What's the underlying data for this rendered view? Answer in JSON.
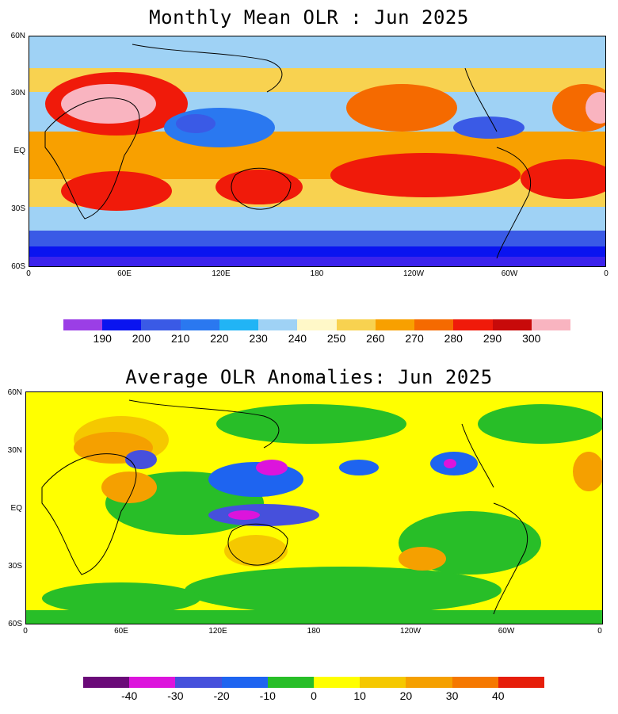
{
  "top_panel": {
    "title": "Monthly Mean OLR : Jun 2025",
    "lat_labels": [
      "60N",
      "30N",
      "EQ",
      "30S",
      "60S"
    ],
    "lon_labels": [
      "0",
      "60E",
      "120E",
      "180",
      "120W",
      "60W",
      "0"
    ],
    "colorbar": {
      "colors": [
        "#9b3ee6",
        "#0a14f0",
        "#3a5ae6",
        "#2a78f0",
        "#21b4f5",
        "#9fd2f5",
        "#fff8c8",
        "#f8d250",
        "#f8a000",
        "#f56a00",
        "#f01a0a",
        "#c80a0a",
        "#f9b4c0"
      ],
      "labels": [
        "190",
        "200",
        "210",
        "220",
        "230",
        "240",
        "250",
        "260",
        "270",
        "280",
        "290",
        "300"
      ]
    }
  },
  "bottom_panel": {
    "title": "Average OLR Anomalies: Jun 2025",
    "lat_labels": [
      "60N",
      "30N",
      "EQ",
      "30S",
      "60S"
    ],
    "lon_labels": [
      "0",
      "60E",
      "120E",
      "180",
      "120W",
      "60W",
      "0"
    ],
    "colorbar": {
      "colors": [
        "#6a0a78",
        "#dc14dc",
        "#4650dc",
        "#1e64f0",
        "#28be28",
        "#ffff00",
        "#f5c800",
        "#f5a000",
        "#f57800",
        "#e61e0a"
      ],
      "labels": [
        "-40",
        "-30",
        "-20",
        "-10",
        "0",
        "10",
        "20",
        "30",
        "40"
      ]
    }
  }
}
